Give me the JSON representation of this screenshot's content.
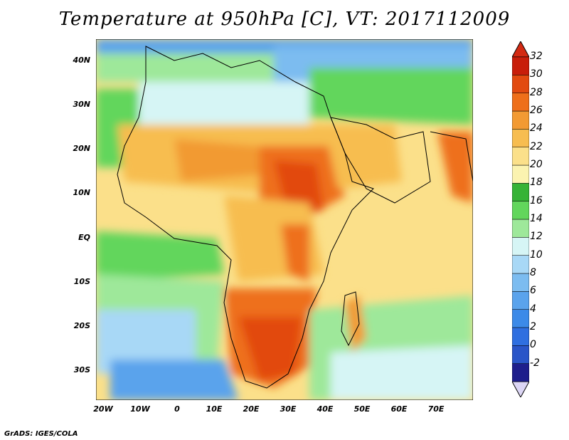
{
  "title": "Temperature at 950hPa [C], VT: 2017112009",
  "credit": "GrADS: IGES/COLA",
  "lat_labels": [
    "40N",
    "30N",
    "20N",
    "10N",
    "EQ",
    "10S",
    "20S",
    "30S"
  ],
  "lon_labels": [
    "20W",
    "10W",
    "0",
    "10E",
    "20E",
    "30E",
    "40E",
    "50E",
    "60E",
    "70E"
  ],
  "colorbar": {
    "levels": [
      "-2",
      "0",
      "2",
      "4",
      "6",
      "8",
      "10",
      "12",
      "14",
      "16",
      "18",
      "20",
      "22",
      "24",
      "26",
      "28",
      "30",
      "32"
    ],
    "colors": [
      "#1e1e8c",
      "#2a55c8",
      "#2f6fe0",
      "#3c8ae8",
      "#5aa3ec",
      "#7cbcf0",
      "#a8d8f6",
      "#d6f5f5",
      "#9ee89a",
      "#62d65c",
      "#36b336",
      "#fbf3b0",
      "#fbe08a",
      "#f7bd50",
      "#f29a33",
      "#ee6f1a",
      "#e24a10",
      "#c81e0a"
    ],
    "under_color": "#dcd6f5",
    "over_color": "#d32a12"
  }
}
